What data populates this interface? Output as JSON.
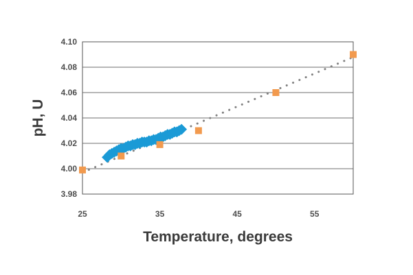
{
  "chart_data": {
    "type": "scatter",
    "title": "",
    "xlabel": "Temperature, degrees",
    "ylabel": "pH, U",
    "xlim": [
      25,
      60
    ],
    "ylim": [
      3.98,
      4.1
    ],
    "x_ticks": [
      "25",
      "35",
      "45",
      "55"
    ],
    "y_ticks": [
      "3.98",
      "4.00",
      "4.02",
      "4.04",
      "4.06",
      "4.08",
      "4.10"
    ],
    "grid": "horizontal",
    "legend": "none",
    "series": [
      {
        "marker": "diamond",
        "color": "#1a9ad6",
        "points": [
          [
            28.2,
            4.009
          ],
          [
            28.5,
            4.011
          ],
          [
            28.8,
            4.012
          ],
          [
            29.1,
            4.013
          ],
          [
            29.4,
            4.014
          ],
          [
            29.7,
            4.015
          ],
          [
            30.0,
            4.016
          ],
          [
            30.3,
            4.016
          ],
          [
            30.6,
            4.017
          ],
          [
            30.9,
            4.018
          ],
          [
            31.2,
            4.018
          ],
          [
            31.5,
            4.019
          ],
          [
            31.8,
            4.019
          ],
          [
            32.1,
            4.02
          ],
          [
            32.4,
            4.02
          ],
          [
            32.7,
            4.021
          ],
          [
            33.0,
            4.021
          ],
          [
            33.3,
            4.021
          ],
          [
            33.6,
            4.022
          ],
          [
            33.9,
            4.022
          ],
          [
            34.2,
            4.023
          ],
          [
            34.5,
            4.023
          ],
          [
            34.8,
            4.024
          ],
          [
            35.1,
            4.025
          ],
          [
            35.4,
            4.025
          ],
          [
            35.7,
            4.026
          ],
          [
            36.0,
            4.027
          ],
          [
            36.3,
            4.027
          ],
          [
            36.6,
            4.028
          ],
          [
            36.9,
            4.029
          ],
          [
            37.2,
            4.029
          ],
          [
            37.5,
            4.03
          ],
          [
            37.8,
            4.031
          ]
        ]
      },
      {
        "marker": "square",
        "color": "#f29a4e",
        "points": [
          [
            25,
            3.999
          ],
          [
            30,
            4.01
          ],
          [
            35,
            4.019
          ],
          [
            40,
            4.03
          ],
          [
            50,
            4.06
          ],
          [
            60,
            4.09
          ]
        ]
      }
    ],
    "trendline": {
      "style": "dotted",
      "color": "#808080",
      "from": [
        25,
        3.997
      ],
      "to": [
        60,
        4.088
      ]
    }
  }
}
